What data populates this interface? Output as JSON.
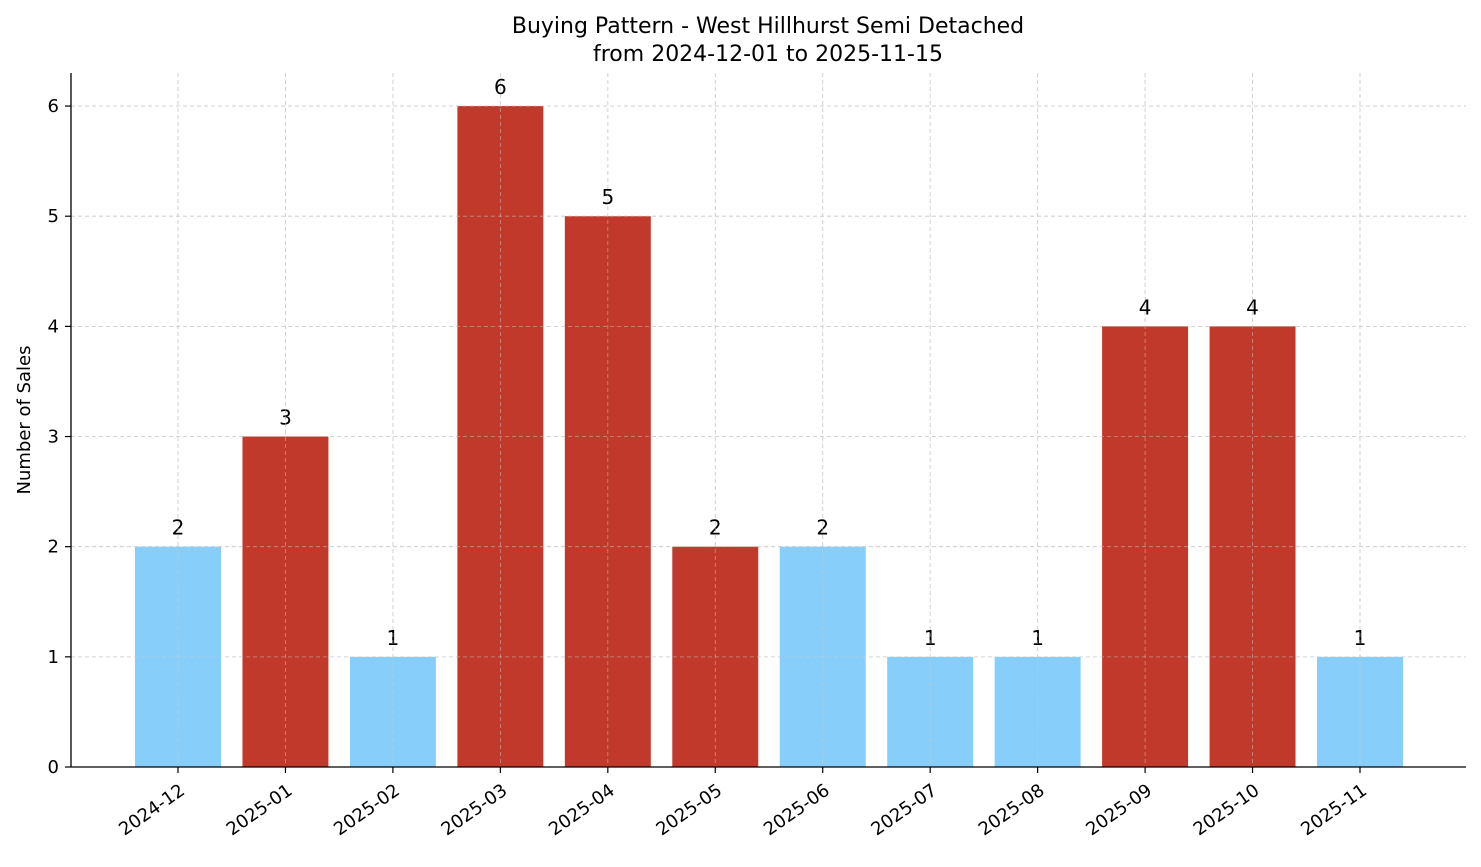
{
  "chart_data": {
    "type": "bar",
    "title": "Buying Pattern - West Hillhurst Semi Detached",
    "subtitle": "from 2024-12-01 to 2025-11-15",
    "xlabel": "",
    "ylabel": "Number of Sales",
    "categories": [
      "2024-12",
      "2025-01",
      "2025-02",
      "2025-03",
      "2025-04",
      "2025-05",
      "2025-06",
      "2025-07",
      "2025-08",
      "2025-09",
      "2025-10",
      "2025-11"
    ],
    "values": [
      2,
      3,
      1,
      6,
      5,
      2,
      2,
      1,
      1,
      4,
      4,
      1
    ],
    "bar_colors": [
      "#87CEFA",
      "#C0392B",
      "#87CEFA",
      "#C0392B",
      "#C0392B",
      "#C0392B",
      "#87CEFA",
      "#87CEFA",
      "#87CEFA",
      "#C0392B",
      "#C0392B",
      "#87CEFA"
    ],
    "ylim": [
      0,
      6.3
    ],
    "yticks": [
      0,
      1,
      2,
      3,
      4,
      5,
      6
    ],
    "grid": true,
    "data_labels": true
  }
}
